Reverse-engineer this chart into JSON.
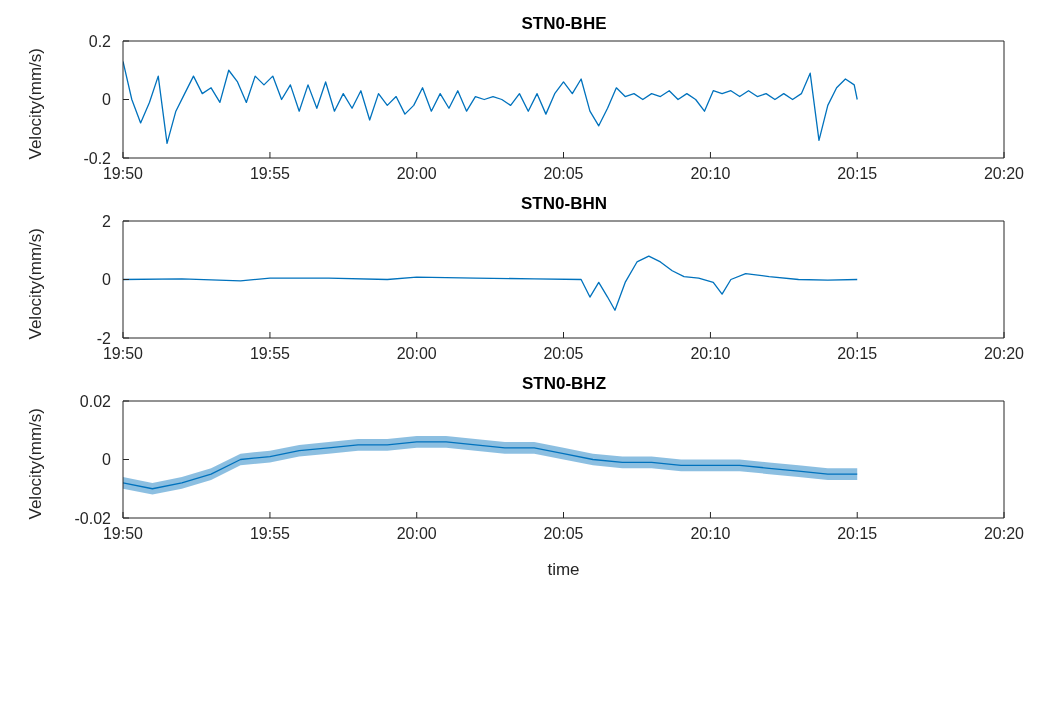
{
  "chart_data": [
    {
      "type": "line",
      "title": "STN0-BHE",
      "ylabel": "Velocity(mm/s)",
      "xlim": [
        19.8333,
        20.3333
      ],
      "ylim": [
        -0.2,
        0.2
      ],
      "yticks": [
        -0.2,
        0,
        0.2
      ],
      "xticks": [
        {
          "value": 19.8333,
          "label": "19:50"
        },
        {
          "value": 19.9167,
          "label": "19:55"
        },
        {
          "value": 20,
          "label": "20:00"
        },
        {
          "value": 20.0833,
          "label": "20:05"
        },
        {
          "value": 20.1667,
          "label": "20:10"
        },
        {
          "value": 20.25,
          "label": "20:15"
        },
        {
          "value": 20.3333,
          "label": "20:20"
        }
      ],
      "series": [
        {
          "color": "#0072bd",
          "x": [
            19.8333,
            19.8383,
            19.8433,
            19.8483,
            19.8533,
            19.8583,
            19.8633,
            19.8683,
            19.8733,
            19.8783,
            19.8833,
            19.8883,
            19.8933,
            19.8983,
            19.9033,
            19.9083,
            19.9133,
            19.9183,
            19.9233,
            19.9283,
            19.9333,
            19.9383,
            19.9433,
            19.9483,
            19.9533,
            19.9583,
            19.9633,
            19.9683,
            19.9733,
            19.9783,
            19.9833,
            19.9883,
            19.9933,
            19.9983,
            20.0033,
            20.0083,
            20.0133,
            20.0183,
            20.0233,
            20.0283,
            20.0333,
            20.0383,
            20.0433,
            20.0483,
            20.0533,
            20.0583,
            20.0633,
            20.0683,
            20.0733,
            20.0783,
            20.0833,
            20.0883,
            20.0933,
            20.0983,
            20.1033,
            20.1083,
            20.1133,
            20.1183,
            20.1233,
            20.1283,
            20.1333,
            20.1383,
            20.1433,
            20.1483,
            20.1533,
            20.1583,
            20.1633,
            20.1683,
            20.1733,
            20.1783,
            20.1833,
            20.1883,
            20.1933,
            20.1983,
            20.2033,
            20.2083,
            20.2133,
            20.2183,
            20.2233,
            20.2283,
            20.2333,
            20.2383,
            20.2433,
            20.2483,
            20.25
          ],
          "values": [
            0.13,
            0,
            -0.08,
            -0.01,
            0.08,
            -0.15,
            -0.04,
            0.02,
            0.08,
            0.02,
            0.04,
            -0.01,
            0.1,
            0.06,
            -0.01,
            0.08,
            0.05,
            0.08,
            0,
            0.05,
            -0.04,
            0.05,
            -0.03,
            0.06,
            -0.04,
            0.02,
            -0.03,
            0.03,
            -0.07,
            0.02,
            -0.02,
            0.01,
            -0.05,
            -0.02,
            0.04,
            -0.04,
            0.02,
            -0.03,
            0.03,
            -0.04,
            0.01,
            0,
            0.01,
            0,
            -0.02,
            0.02,
            -0.04,
            0.02,
            -0.05,
            0.02,
            0.06,
            0.02,
            0.07,
            -0.04,
            -0.09,
            -0.03,
            0.04,
            0.01,
            0.02,
            0,
            0.02,
            0.01,
            0.03,
            0,
            0.02,
            0,
            -0.04,
            0.03,
            0.02,
            0.03,
            0.01,
            0.03,
            0.01,
            0.02,
            0,
            0.02,
            0,
            0.02,
            0.09,
            -0.14,
            -0.02,
            0.04,
            0.07,
            0.05,
            0
          ]
        }
      ]
    },
    {
      "type": "line",
      "title": "STN0-BHN",
      "ylabel": "Velocity(mm/s)",
      "xlim": [
        19.8333,
        20.3333
      ],
      "ylim": [
        -2,
        2
      ],
      "yticks": [
        -2,
        0,
        2
      ],
      "xticks": [
        {
          "value": 19.8333,
          "label": "19:50"
        },
        {
          "value": 19.9167,
          "label": "19:55"
        },
        {
          "value": 20,
          "label": "20:00"
        },
        {
          "value": 20.0833,
          "label": "20:05"
        },
        {
          "value": 20.1667,
          "label": "20:10"
        },
        {
          "value": 20.25,
          "label": "20:15"
        },
        {
          "value": 20.3333,
          "label": "20:20"
        }
      ],
      "series": [
        {
          "color": "#0072bd",
          "x": [
            19.8333,
            19.8667,
            19.9,
            19.9167,
            19.95,
            19.9833,
            20,
            20.0333,
            20.0667,
            20.0933,
            20.0983,
            20.1033,
            20.1083,
            20.1125,
            20.1183,
            20.125,
            20.1317,
            20.1383,
            20.145,
            20.1517,
            20.16,
            20.1683,
            20.1733,
            20.1783,
            20.1867,
            20.2,
            20.2167,
            20.2333,
            20.25
          ],
          "values": [
            0,
            0.02,
            -0.05,
            0.05,
            0.05,
            0,
            0.08,
            0.05,
            0.02,
            0,
            -0.6,
            -0.1,
            -0.6,
            -1.05,
            -0.1,
            0.6,
            0.8,
            0.6,
            0.3,
            0.1,
            0.05,
            -0.1,
            -0.5,
            0,
            0.2,
            0.1,
            0,
            -0.02,
            0
          ]
        }
      ]
    },
    {
      "type": "line",
      "title": "STN0-BHZ",
      "ylabel": "Velocity(mm/s)",
      "xlabel": "time",
      "xlim": [
        19.8333,
        20.3333
      ],
      "ylim": [
        -0.02,
        0.02
      ],
      "yticks": [
        -0.02,
        0,
        0.02
      ],
      "xticks": [
        {
          "value": 19.8333,
          "label": "19:50"
        },
        {
          "value": 19.9167,
          "label": "19:55"
        },
        {
          "value": 20,
          "label": "20:00"
        },
        {
          "value": 20.0833,
          "label": "20:05"
        },
        {
          "value": 20.1667,
          "label": "20:10"
        },
        {
          "value": 20.25,
          "label": "20:15"
        },
        {
          "value": 20.3333,
          "label": "20:20"
        }
      ],
      "series": [
        {
          "color": "#0072bd",
          "x": [
            19.8333,
            19.85,
            19.8667,
            19.8833,
            19.9,
            19.9167,
            19.9333,
            19.95,
            19.9667,
            19.9833,
            20,
            20.0167,
            20.0333,
            20.05,
            20.0667,
            20.0833,
            20.1,
            20.1167,
            20.1333,
            20.15,
            20.1667,
            20.1833,
            20.2,
            20.2167,
            20.2333,
            20.25
          ],
          "values": [
            -0.008,
            -0.01,
            -0.008,
            -0.005,
            0,
            0.001,
            0.003,
            0.004,
            0.005,
            0.005,
            0.006,
            0.006,
            0.005,
            0.004,
            0.004,
            0.002,
            0,
            -0.001,
            -0.001,
            -0.002,
            -0.002,
            -0.002,
            -0.003,
            -0.004,
            -0.005,
            -0.005
          ],
          "lower": [
            -0.01,
            -0.012,
            -0.01,
            -0.007,
            -0.002,
            -0.001,
            0.001,
            0.002,
            0.003,
            0.003,
            0.004,
            0.004,
            0.003,
            0.002,
            0.002,
            0,
            -0.002,
            -0.003,
            -0.003,
            -0.004,
            -0.004,
            -0.004,
            -0.005,
            -0.006,
            -0.007,
            -0.007
          ],
          "upper": [
            -0.006,
            -0.008,
            -0.006,
            -0.003,
            0.002,
            0.003,
            0.005,
            0.006,
            0.007,
            0.007,
            0.008,
            0.008,
            0.007,
            0.006,
            0.006,
            0.004,
            0.002,
            0.001,
            0.001,
            0,
            0,
            0,
            -0.001,
            -0.002,
            -0.003,
            -0.003
          ]
        }
      ]
    }
  ]
}
